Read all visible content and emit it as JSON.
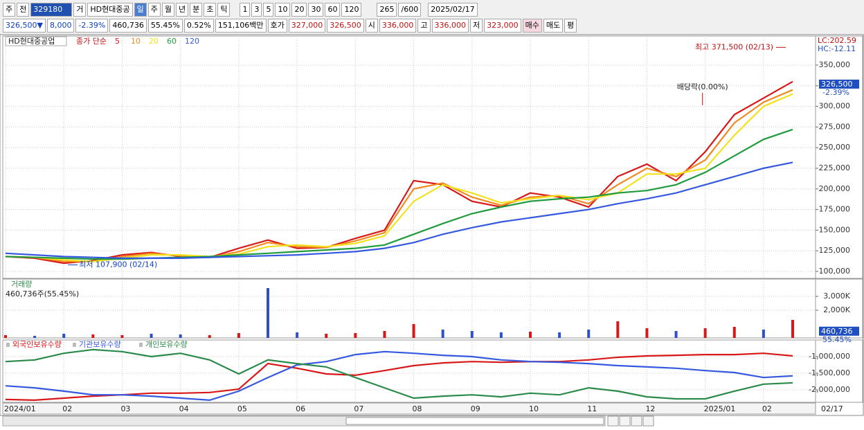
{
  "toolbar": {
    "row1": [
      "주",
      "전",
      "329180",
      "거",
      "HD현대중공",
      "일",
      "주",
      "월",
      "년",
      "분",
      "초",
      "틱",
      "1",
      "3",
      "5",
      "10",
      "20",
      "30",
      "60",
      "120",
      "265",
      "/600",
      "2025/02/17"
    ],
    "row2": [
      "326,500▼",
      "8,000",
      "-2.39%",
      "460,736",
      "55.45%",
      "0.52%",
      "151,106백만",
      "호가",
      "327,000",
      "326,500",
      "시",
      "336,000",
      "고",
      "336,000",
      "저",
      "323,000",
      "매수",
      "매도",
      "평"
    ]
  },
  "chart_data": [
    {
      "type": "line",
      "title": "HD현대중공업",
      "legend_prefix": "종가 단순",
      "categories": [
        "2024/01",
        null,
        "02",
        null,
        "03",
        null,
        "04",
        null,
        "05",
        null,
        "06",
        null,
        "07",
        null,
        "08",
        null,
        "09",
        null,
        "10",
        null,
        "11",
        null,
        "12",
        null,
        "2025/01",
        null,
        "02",
        null
      ],
      "series": [
        {
          "name": "5",
          "color": "#d81818",
          "values": [
            118000,
            116000,
            110000,
            113000,
            120000,
            123000,
            118000,
            117000,
            128000,
            138000,
            128000,
            129000,
            140000,
            150000,
            210000,
            205000,
            185000,
            178000,
            195000,
            190000,
            178000,
            215000,
            230000,
            210000,
            245000,
            290000,
            310000,
            330000
          ]
        },
        {
          "name": "10",
          "color": "#f08a20",
          "values": [
            118000,
            117000,
            112000,
            112000,
            118000,
            122000,
            119000,
            117000,
            124000,
            135000,
            130000,
            129000,
            137000,
            147000,
            200000,
            207000,
            190000,
            180000,
            190000,
            192000,
            182000,
            205000,
            225000,
            215000,
            235000,
            280000,
            305000,
            320000
          ]
        },
        {
          "name": "20",
          "color": "#f2e21e",
          "values": [
            118000,
            117000,
            114000,
            112000,
            116000,
            120000,
            120000,
            118000,
            121000,
            130000,
            132000,
            130000,
            134000,
            143000,
            185000,
            205000,
            195000,
            183000,
            188000,
            192000,
            187000,
            195000,
            218000,
            218000,
            225000,
            265000,
            300000,
            315000
          ]
        },
        {
          "name": "60",
          "color": "#1f9a3c",
          "values": [
            118000,
            117000,
            116000,
            115000,
            115000,
            116000,
            117000,
            118000,
            120000,
            122000,
            124000,
            126000,
            128000,
            132000,
            145000,
            158000,
            170000,
            178000,
            185000,
            188000,
            190000,
            195000,
            198000,
            205000,
            220000,
            240000,
            260000,
            272000
          ]
        },
        {
          "name": "120",
          "color": "#3558e0",
          "values": [
            122000,
            120000,
            118000,
            117000,
            116000,
            116000,
            116000,
            117000,
            118000,
            119000,
            120000,
            122000,
            124000,
            128000,
            135000,
            145000,
            153000,
            160000,
            165000,
            170000,
            175000,
            182000,
            188000,
            195000,
            205000,
            215000,
            225000,
            232000
          ]
        }
      ],
      "ylim": [
        91600,
        382700
      ],
      "yticks": [
        {
          "value": 100000,
          "label": "100,000"
        },
        {
          "value": 125000,
          "label": "125,000"
        },
        {
          "value": 150000,
          "label": "150,000"
        },
        {
          "value": 175000,
          "label": "175,000"
        },
        {
          "value": 200000,
          "label": "200,000"
        },
        {
          "value": 225000,
          "label": "225,000"
        },
        {
          "value": 250000,
          "label": "250,000"
        },
        {
          "value": 275000,
          "label": "275,000"
        },
        {
          "value": 300000,
          "label": "300,000"
        },
        {
          "value": 325000,
          "label": "325,000"
        },
        {
          "value": 350000,
          "label": "350,000"
        }
      ],
      "grid": true,
      "high": {
        "value": 371500,
        "label": "최고 371,500 (02/13)"
      },
      "low": {
        "value": 107900,
        "label": "최저 107,900 (02/14)"
      },
      "ex_dividend_label": "배당락(0.00%)",
      "current": {
        "value": 326500,
        "label": "326,500"
      },
      "change_label": "-2.39%",
      "lc_label": "LC:202.59",
      "hc_label": "HC:-12.11"
    },
    {
      "type": "bar",
      "title": "거래량",
      "subtitle": "460,736주(55.45%)",
      "values": [
        200,
        150,
        300,
        250,
        200,
        300,
        250,
        200,
        350,
        3600,
        400,
        300,
        350,
        500,
        1000,
        600,
        500,
        400,
        450,
        400,
        600,
        1200,
        700,
        500,
        700,
        800,
        600,
        1300
      ],
      "colors": [
        "#d81818",
        "#3050c8",
        "#3050c8",
        "#d81818",
        "#d81818",
        "#3050c8",
        "#3050c8",
        "#d81818",
        "#d81818",
        "#3050c8",
        "#3050c8",
        "#d81818",
        "#d81818",
        "#d81818",
        "#d81818",
        "#3050c8",
        "#3050c8",
        "#3050c8",
        "#d81818",
        "#3050c8",
        "#3050c8",
        "#d81818",
        "#d81818",
        "#3050c8",
        "#d81818",
        "#d81818",
        "#3050c8",
        "#d81818"
      ],
      "ylim": [
        0,
        4100
      ],
      "yticks": [
        {
          "value": 2000,
          "label": "2,000K"
        },
        {
          "value": 3000,
          "label": "3,000K"
        }
      ],
      "grid": true,
      "current": {
        "value": 460.736,
        "label": "460,736"
      },
      "current_pct_label": "55.45%"
    },
    {
      "type": "line",
      "series": [
        {
          "name": "외국인보유수량",
          "color": "#d81818",
          "values": [
            -2290000,
            -2310000,
            -2250000,
            -2190000,
            -2150000,
            -2100000,
            -2100000,
            -2080000,
            -1980000,
            -1210000,
            -1350000,
            -1520000,
            -1560000,
            -1420000,
            -1270000,
            -1190000,
            -1150000,
            -1170000,
            -1150000,
            -1150000,
            -1100000,
            -1020000,
            -980000,
            -960000,
            -940000,
            -940000,
            -900000,
            -980000
          ]
        },
        {
          "name": "기관보유수량",
          "color": "#3558e0",
          "values": [
            -1880000,
            -1940000,
            -2040000,
            -2150000,
            -2150000,
            -2190000,
            -2250000,
            -2310000,
            -2040000,
            -1630000,
            -1250000,
            -1150000,
            -940000,
            -850000,
            -900000,
            -960000,
            -1000000,
            -1100000,
            -1150000,
            -1170000,
            -1210000,
            -1270000,
            -1310000,
            -1350000,
            -1420000,
            -1480000,
            -1630000,
            -1580000
          ]
        },
        {
          "name": "개인보유수량",
          "color": "#2a8a4a",
          "values": [
            -1150000,
            -1100000,
            -900000,
            -790000,
            -850000,
            -1000000,
            -900000,
            -1100000,
            -1520000,
            -1100000,
            -1210000,
            -1310000,
            -1630000,
            -1940000,
            -2250000,
            -2190000,
            -2150000,
            -2210000,
            -2100000,
            -2150000,
            -1940000,
            -2040000,
            -2210000,
            -2270000,
            -2270000,
            -2040000,
            -1830000,
            -1790000
          ]
        }
      ],
      "ylim": [
        -2375000,
        -562500
      ],
      "yticks": [
        {
          "value": -2000000,
          "label": "-2,000,000"
        },
        {
          "value": -1500000,
          "label": "-1,500,000"
        },
        {
          "value": -1000000,
          "label": "-1,000,000"
        }
      ],
      "grid": true,
      "x_end_label": "02/17"
    }
  ]
}
